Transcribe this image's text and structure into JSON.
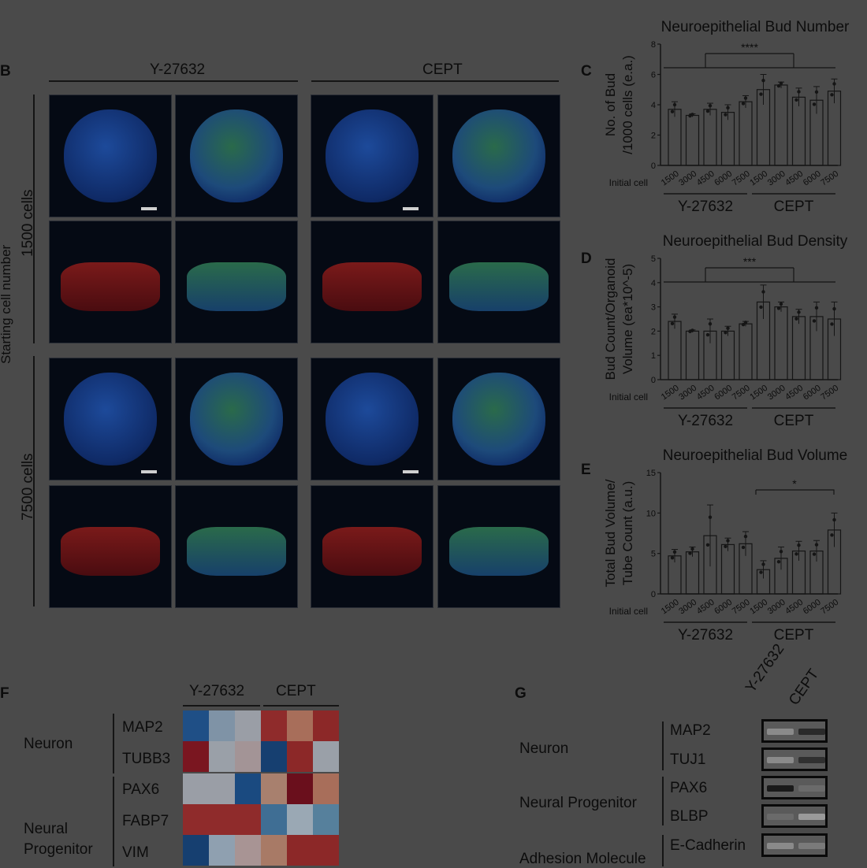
{
  "panels": {
    "B": "B",
    "C": "C",
    "D": "D",
    "E": "E",
    "F": "F",
    "G": "G"
  },
  "panel_b": {
    "col_groups": [
      "Y-27632",
      "CEPT"
    ],
    "y_axis_label": "Starting cell number",
    "row_labels": [
      "1500 cells",
      "7500 cells"
    ]
  },
  "chart_data": [
    {
      "type": "bar",
      "title": "Neuroepithelial Bud Number",
      "ylabel": "No. of Bud /1000 cells (e.a.)",
      "ylabel_lines": [
        "No. of Bud",
        "/1000 cells (e.a.)"
      ],
      "xlabel": "Initial cell",
      "ylim": [
        0,
        8
      ],
      "yticks": [
        0,
        2,
        4,
        6,
        8
      ],
      "categories": [
        "1500",
        "3000",
        "4500",
        "6000",
        "7500",
        "1500",
        "3000",
        "4500",
        "6000",
        "7500"
      ],
      "groups": [
        "Y-27632",
        "CEPT"
      ],
      "values": [
        3.7,
        3.3,
        3.7,
        3.5,
        4.2,
        5.0,
        5.3,
        4.5,
        4.3,
        4.9
      ],
      "errors": [
        0.5,
        0.1,
        0.4,
        0.5,
        0.4,
        1.0,
        0.2,
        0.6,
        0.9,
        0.8
      ],
      "significance": "****"
    },
    {
      "type": "bar",
      "title": "Neuroepithelial Bud Density",
      "ylabel": "Bud Count/Organoid Volume (ea*10^-5)",
      "ylabel_lines": [
        "Bud Count/Organoid",
        "Volume (ea*10^-5)"
      ],
      "xlabel": "Initial cell",
      "ylim": [
        0,
        5
      ],
      "yticks": [
        0,
        1,
        2,
        3,
        4,
        5
      ],
      "categories": [
        "1500",
        "3000",
        "4500",
        "6000",
        "7500",
        "1500",
        "3000",
        "4500",
        "6000",
        "7500"
      ],
      "groups": [
        "Y-27632",
        "CEPT"
      ],
      "values": [
        2.4,
        2.0,
        2.0,
        2.0,
        2.3,
        3.2,
        3.0,
        2.6,
        2.6,
        2.5
      ],
      "errors": [
        0.3,
        0.05,
        0.5,
        0.2,
        0.1,
        0.7,
        0.2,
        0.3,
        0.6,
        0.7
      ],
      "significance": "***"
    },
    {
      "type": "bar",
      "title": "Neuroepithelial Bud Volume",
      "ylabel": "Total Bud Volume/ Tube Count (a.u.)",
      "ylabel_lines": [
        "Total Bud Volume/",
        "Tube Count  (a.u.)"
      ],
      "xlabel": "Initial cell",
      "ylim": [
        0,
        15
      ],
      "yticks": [
        0,
        5,
        10,
        15
      ],
      "categories": [
        "1500",
        "3000",
        "4500",
        "6000",
        "7500",
        "1500",
        "3000",
        "4500",
        "6000",
        "7500"
      ],
      "groups": [
        "Y-27632",
        "CEPT"
      ],
      "values": [
        4.7,
        5.2,
        7.2,
        6.1,
        6.2,
        3.0,
        4.4,
        5.3,
        5.3,
        7.9
      ],
      "errors": [
        0.8,
        0.6,
        3.8,
        0.8,
        1.5,
        1.1,
        1.4,
        1.2,
        1.3,
        2.1
      ],
      "significance": "*"
    }
  ],
  "panel_f": {
    "col_groups": [
      "Y-27632",
      "CEPT"
    ],
    "categories": [
      {
        "name": "Neuron",
        "genes": [
          "MAP2",
          "TUBB3"
        ]
      },
      {
        "name_lines": [
          "Neural",
          "Progenitor"
        ],
        "genes": [
          "PAX6",
          "FABP7",
          "VIM"
        ]
      }
    ],
    "heat": [
      [
        "#1f4f86",
        "#7f93a6",
        "#9a9ea6",
        "#8f2b2b",
        "#a86e5a",
        "#8c2828"
      ],
      [
        "#7a1620",
        "#9aa0a8",
        "#a39496",
        "#163f70",
        "#8c2828",
        "#9aa0a8"
      ],
      [
        "#9a9ea6",
        "#9a9ea6",
        "#1a4a80",
        "#a8806e",
        "#6a0f1c",
        "#a86e5a"
      ],
      [
        "#8f2b2b",
        "#8f2b2b",
        "#8f2b2b",
        "#3f6e94",
        "#9aa8b4",
        "#56809c"
      ],
      [
        "#163f70",
        "#8fa0b0",
        "#a89494",
        "#a87a66",
        "#8c2828",
        "#8c2828"
      ]
    ]
  },
  "panel_g": {
    "col_labels": [
      "Y-27632",
      "CEPT"
    ],
    "categories": [
      {
        "name": "Neuron",
        "proteins": [
          "MAP2",
          "TUJ1"
        ]
      },
      {
        "name": "Neural Progenitor",
        "proteins": [
          "PAX6",
          "BLBP"
        ]
      },
      {
        "name": "Adhesion Molecule",
        "proteins": [
          "E-Cadherin"
        ]
      }
    ]
  }
}
